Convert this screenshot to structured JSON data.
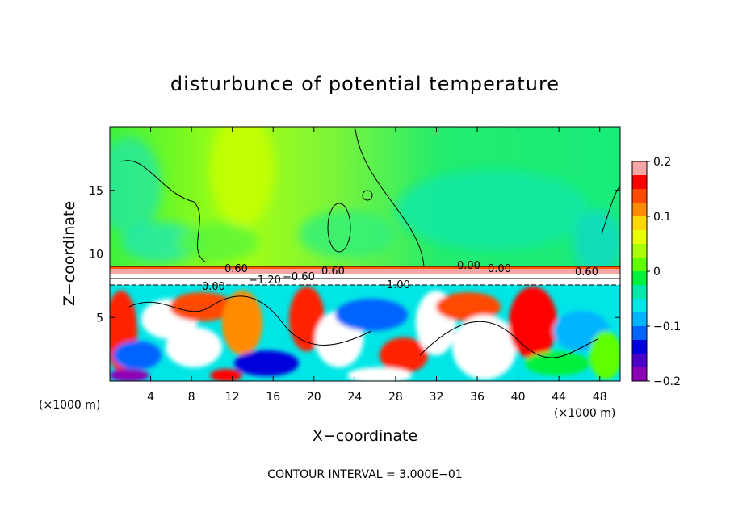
{
  "chart_data": {
    "type": "heatmap",
    "title": "disturbunce of potential temperature",
    "xlabel": "X−coordinate",
    "ylabel": "Z−coordinate",
    "x_unit_left": "(×1000 m)",
    "x_unit_right": "(×1000 m)",
    "xlim": [
      0,
      50
    ],
    "ylim": [
      0,
      20
    ],
    "x_ticks": [
      4,
      8,
      12,
      16,
      20,
      24,
      28,
      32,
      36,
      40,
      44,
      48
    ],
    "y_ticks": [
      5,
      10,
      15
    ],
    "colorbar": {
      "range": [
        -0.2,
        0.2
      ],
      "tick_values": [
        0.2,
        0.1,
        0,
        -0.1,
        -0.2
      ],
      "tick_labels": [
        "0.2",
        "0.1",
        "0",
        "−0.1",
        "−0.2"
      ],
      "colors": [
        "#f7a6a6",
        "#ff0000",
        "#ff4a00",
        "#ff8c00",
        "#ffd700",
        "#e8ff00",
        "#a8ff00",
        "#5fff00",
        "#00f03c",
        "#00e8a8",
        "#00e6e6",
        "#00b4ff",
        "#0064ff",
        "#0000dc",
        "#4b00c8",
        "#8c00b4"
      ]
    },
    "contour_interval": "CONTOUR INTERVAL = 3.000E−01",
    "contour_labels": [
      "0.60",
      "0.00",
      "0.60",
      "0.00",
      "0.60",
      "−1.20",
      "−0.60",
      "−1.00",
      "0.00"
    ]
  }
}
